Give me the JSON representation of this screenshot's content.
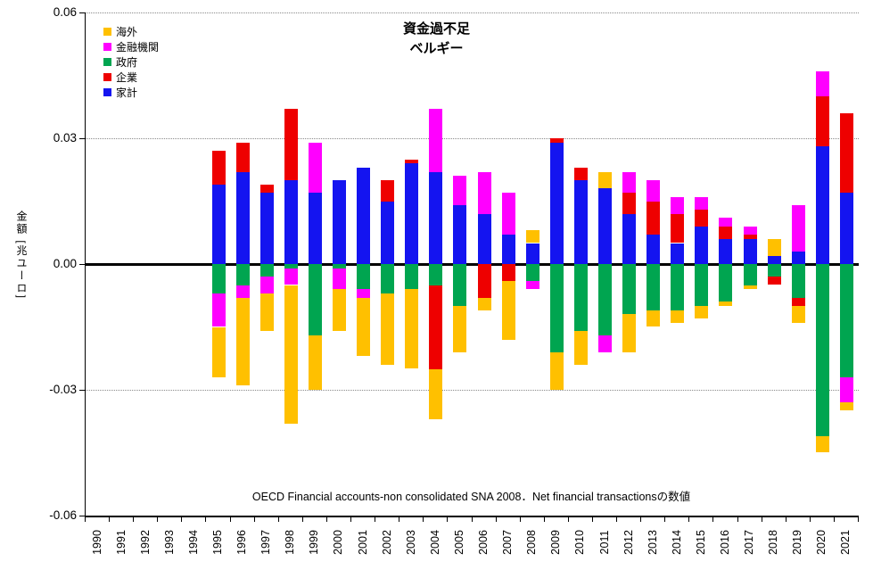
{
  "chart_data": {
    "type": "bar",
    "stacked": true,
    "title_line1": "資金過不足",
    "title_line2": "ベルギー",
    "ylabel": "金額 [兆ユーロ]",
    "footnote": "OECD Financial accounts-non consolidated SNA 2008．Net financial transactionsの数値",
    "legend_position": "top-left",
    "grid": "horizontal-dotted",
    "ylim": [
      -0.06,
      0.06
    ],
    "ytick_values": [
      0.06,
      0.03,
      0,
      -0.03,
      -0.06
    ],
    "ytick_labels": [
      "0.06",
      "0.03",
      "0.00",
      "-0.03",
      "-0.06"
    ],
    "categories": [
      "1990",
      "1991",
      "1992",
      "1993",
      "1994",
      "1995",
      "1996",
      "1997",
      "1998",
      "1999",
      "2000",
      "2001",
      "2002",
      "2003",
      "2004",
      "2005",
      "2006",
      "2007",
      "2008",
      "2009",
      "2010",
      "2011",
      "2012",
      "2013",
      "2014",
      "2015",
      "2016",
      "2017",
      "2018",
      "2019",
      "2020",
      "2021"
    ],
    "stack_order_from_zero": [
      "家計",
      "政府",
      "企業",
      "金融機関",
      "海外"
    ],
    "series": [
      {
        "name": "海外",
        "color": "#FFC000",
        "values": [
          0,
          0,
          0,
          0,
          0,
          -0.012,
          -0.021,
          -0.009,
          -0.033,
          -0.013,
          -0.01,
          -0.014,
          -0.017,
          -0.019,
          -0.012,
          -0.011,
          -0.003,
          -0.014,
          0.003,
          -0.009,
          -0.008,
          0.004,
          -0.009,
          -0.004,
          -0.003,
          -0.003,
          -0.001,
          -0.001,
          0.004,
          -0.004,
          -0.004,
          -0.002
        ]
      },
      {
        "name": "金融機関",
        "color": "#FF00FF",
        "values": [
          0,
          0,
          0,
          0,
          0,
          -0.008,
          -0.003,
          -0.004,
          -0.004,
          0.012,
          -0.005,
          -0.002,
          0,
          0,
          0.015,
          0.007,
          0.01,
          0.01,
          -0.002,
          0,
          0,
          -0.004,
          0.005,
          0.005,
          0.004,
          0.003,
          0.002,
          0.002,
          0,
          0.011,
          0.006,
          -0.006
        ]
      },
      {
        "name": "政府",
        "color": "#00A550",
        "values": [
          0,
          0,
          0,
          0,
          0,
          -0.007,
          -0.005,
          -0.003,
          -0.001,
          -0.017,
          -0.001,
          -0.006,
          -0.007,
          -0.006,
          -0.005,
          -0.01,
          0,
          0,
          -0.004,
          -0.021,
          -0.016,
          -0.017,
          -0.012,
          -0.011,
          -0.011,
          -0.01,
          -0.009,
          -0.005,
          -0.003,
          -0.008,
          -0.041,
          -0.027
        ]
      },
      {
        "name": "企業",
        "color": "#EE0000",
        "values": [
          0,
          0,
          0,
          0,
          0,
          0.008,
          0.007,
          0.002,
          0.017,
          0,
          0,
          0,
          0.005,
          0.001,
          -0.02,
          0,
          -0.008,
          -0.004,
          0,
          0.001,
          0.003,
          0,
          0.005,
          0.008,
          0.007,
          0.004,
          0.003,
          0.001,
          -0.002,
          -0.002,
          0.012,
          0.019
        ]
      },
      {
        "name": "家計",
        "color": "#1414F0",
        "values": [
          0,
          0,
          0,
          0,
          0,
          0.019,
          0.022,
          0.017,
          0.02,
          0.017,
          0.02,
          0.023,
          0.015,
          0.024,
          0.022,
          0.014,
          0.012,
          0.007,
          0.005,
          0.029,
          0.02,
          0.018,
          0.012,
          0.007,
          0.005,
          0.009,
          0.006,
          0.006,
          0.002,
          0.003,
          0.028,
          0.017
        ]
      }
    ]
  }
}
